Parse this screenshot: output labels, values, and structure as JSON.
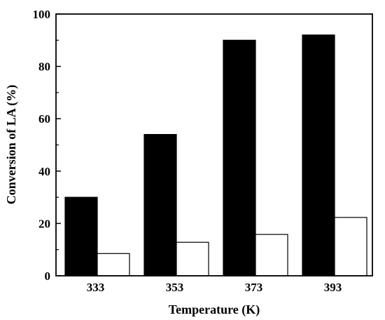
{
  "chart_data": {
    "type": "bar",
    "categories": [
      "333",
      "353",
      "373",
      "393"
    ],
    "series": [
      {
        "values": [
          30,
          54,
          90,
          92
        ],
        "color": "#000000"
      },
      {
        "values": [
          8.5,
          12.8,
          15.8,
          22.3
        ],
        "color": "#ffffff"
      }
    ],
    "xlabel": "Temperature (K)",
    "ylabel": "Conversion of LA  (%)",
    "ylim": [
      0,
      100
    ],
    "yticks": [
      "0",
      "20",
      "40",
      "60",
      "80",
      "100"
    ],
    "grid": false,
    "legend": false
  }
}
